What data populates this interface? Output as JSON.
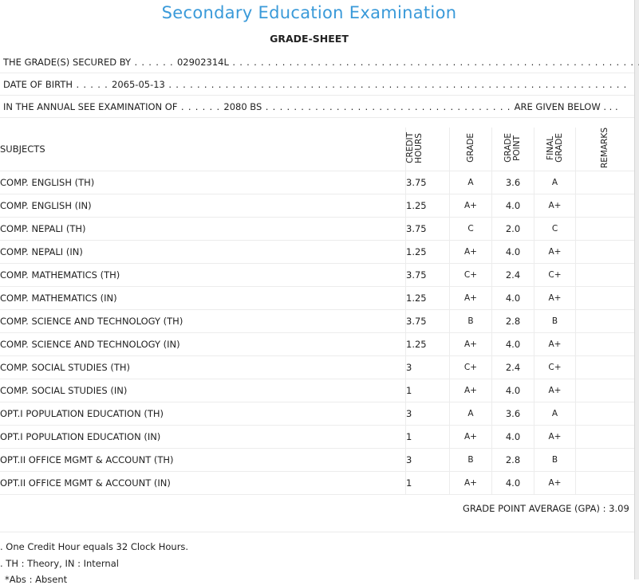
{
  "title": "Secondary Education Examination",
  "subtitle": "GRADE-SHEET",
  "info": {
    "secured_by_label": "THE GRADE(S) SECURED BY",
    "symbol_no": "02902314L",
    "dob_label": "DATE OF BIRTH",
    "dob": "2065-05-13",
    "exam_label": "IN THE ANNUAL SEE EXAMINATION OF",
    "exam_year": "2080 BS",
    "given_below": "ARE GIVEN BELOW . . ."
  },
  "table": {
    "headers": {
      "subjects": "SUBJECTS",
      "credit_hours": "CREDIT\nHOURS",
      "grade": "GRADE",
      "grade_point": "GRADE\nPOINT",
      "final_grade": "FINAL\nGRADE",
      "remarks": "REMARKS"
    },
    "rows": [
      {
        "subject": "COMP. ENGLISH (TH)",
        "credit": "3.75",
        "grade": "A",
        "point": "3.6",
        "final": "A",
        "remarks": ""
      },
      {
        "subject": "COMP. ENGLISH (IN)",
        "credit": "1.25",
        "grade": "A+",
        "point": "4.0",
        "final": "A+",
        "remarks": ""
      },
      {
        "subject": "COMP. NEPALI (TH)",
        "credit": "3.75",
        "grade": "C",
        "point": "2.0",
        "final": "C",
        "remarks": ""
      },
      {
        "subject": "COMP. NEPALI (IN)",
        "credit": "1.25",
        "grade": "A+",
        "point": "4.0",
        "final": "A+",
        "remarks": ""
      },
      {
        "subject": "COMP. MATHEMATICS (TH)",
        "credit": "3.75",
        "grade": "C+",
        "point": "2.4",
        "final": "C+",
        "remarks": ""
      },
      {
        "subject": "COMP. MATHEMATICS (IN)",
        "credit": "1.25",
        "grade": "A+",
        "point": "4.0",
        "final": "A+",
        "remarks": ""
      },
      {
        "subject": "COMP. SCIENCE AND TECHNOLOGY (TH)",
        "credit": "3.75",
        "grade": "B",
        "point": "2.8",
        "final": "B",
        "remarks": ""
      },
      {
        "subject": "COMP. SCIENCE AND TECHNOLOGY (IN)",
        "credit": "1.25",
        "grade": "A+",
        "point": "4.0",
        "final": "A+",
        "remarks": ""
      },
      {
        "subject": "COMP. SOCIAL STUDIES (TH)",
        "credit": "3",
        "grade": "C+",
        "point": "2.4",
        "final": "C+",
        "remarks": ""
      },
      {
        "subject": "COMP. SOCIAL STUDIES (IN)",
        "credit": "1",
        "grade": "A+",
        "point": "4.0",
        "final": "A+",
        "remarks": ""
      },
      {
        "subject": "OPT.I POPULATION EDUCATION (TH)",
        "credit": "3",
        "grade": "A",
        "point": "3.6",
        "final": "A",
        "remarks": ""
      },
      {
        "subject": "OPT.I POPULATION EDUCATION (IN)",
        "credit": "1",
        "grade": "A+",
        "point": "4.0",
        "final": "A+",
        "remarks": ""
      },
      {
        "subject": "OPT.II OFFICE MGMT & ACCOUNT (TH)",
        "credit": "3",
        "grade": "B",
        "point": "2.8",
        "final": "B",
        "remarks": ""
      },
      {
        "subject": "OPT.II OFFICE MGMT & ACCOUNT (IN)",
        "credit": "1",
        "grade": "A+",
        "point": "4.0",
        "final": "A+",
        "remarks": ""
      }
    ]
  },
  "gpa": {
    "label": "GRADE POINT AVERAGE (GPA) :",
    "value": "3.09"
  },
  "notes": [
    ". One Credit Hour equals 32 Clock Hours.",
    ". TH : Theory, IN : Internal",
    "*Abs : Absent"
  ],
  "colors": {
    "title": "#3a9ad9",
    "text": "#222222",
    "rule": "#ececec"
  }
}
